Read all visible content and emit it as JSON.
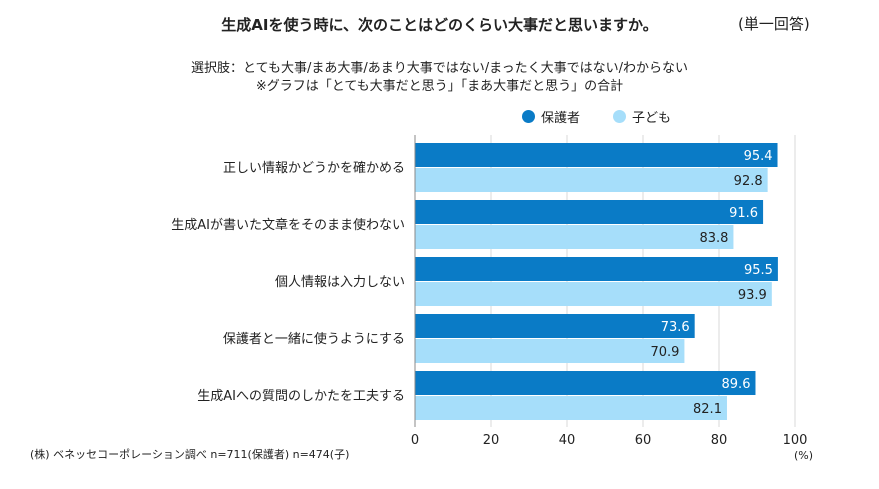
{
  "chart_data": {
    "type": "bar",
    "orientation": "horizontal",
    "title": "生成AIを使う時に、次のことはどのくらい大事だと思いますか。",
    "note": "(単一回答)",
    "subtitle_lines": [
      "選択肢：とても大事/まあ大事/あまり大事ではない/まったく大事ではない/わからない",
      "※グラフは「とても大事だと思う」「まあ大事だと思う」の合計"
    ],
    "categories": [
      "正しい情報かどうかを確かめる",
      "生成AIが書いた文章をそのまま使わない",
      "個人情報は入力しない",
      "保護者と一緒に使うようにする",
      "生成AIへの質問のしかたを工夫する"
    ],
    "series": [
      {
        "name": "保護者",
        "color": "#0a7bc6",
        "values": [
          95.4,
          91.6,
          95.5,
          73.6,
          89.6
        ]
      },
      {
        "name": "子ども",
        "color": "#a6defa",
        "values": [
          92.8,
          83.8,
          93.9,
          70.9,
          82.1
        ]
      }
    ],
    "xlim": [
      0,
      100
    ],
    "xticks": [
      "0",
      "20",
      "40",
      "60",
      "80",
      "100"
    ],
    "xunit": "(%)",
    "legend": "top-right",
    "grid": true,
    "source": "(株) ベネッセコーポレーション調べ n=711(保護者) n=474(子)"
  }
}
